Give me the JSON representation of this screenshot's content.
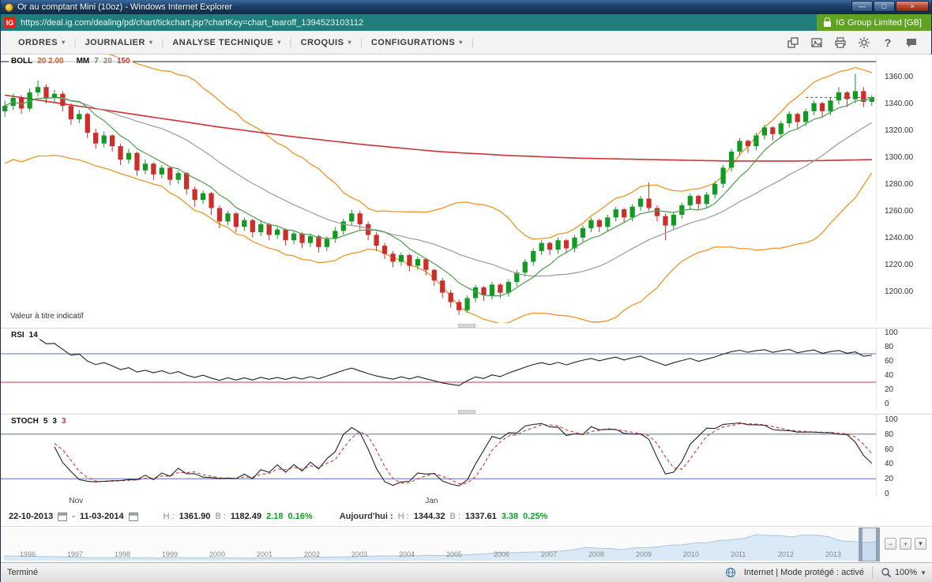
{
  "window": {
    "title": "Or au comptant Mini (10oz) - Windows Internet Explorer"
  },
  "address": {
    "logo": "IG",
    "url": "https://deal.ig.com/dealing/pd/chart/tickchart.jsp?chartKey=chart_tearoff_1394523103112",
    "badge": "IG Group Limited [GB]"
  },
  "menu": {
    "caret": "▾",
    "items": [
      {
        "label": "ORDRES"
      },
      {
        "label": "JOURNALIER"
      },
      {
        "label": "ANALYSE TECHNIQUE"
      },
      {
        "label": "CROQUIS"
      },
      {
        "label": "CONFIGURATIONS"
      }
    ]
  },
  "toolbar_icons": [
    "tearoff-window-icon",
    "snapshot-icon",
    "print-icon",
    "settings-icon",
    "help-icon",
    "feedback-icon"
  ],
  "chart": {
    "note": "Valeur à titre indicatif",
    "indicators": {
      "boll": {
        "name": "BOLL",
        "params": "20 2.00"
      },
      "mm": {
        "name": "MM",
        "p1": "7",
        "p2": "20",
        "p3": "150"
      },
      "rsi": {
        "name": "RSI",
        "params": "14"
      },
      "stoch": {
        "name": "STOCH",
        "p1": "5",
        "p2": "3",
        "p3": "3"
      }
    }
  },
  "info": {
    "from_date": "22-10-2013",
    "dash": "-",
    "to_date": "11-03-2014",
    "h_label": "H :",
    "b_label": "B :",
    "period_high": "1361.90",
    "period_low": "1182.49",
    "change": "2.18",
    "change_pct": "0.16%",
    "today_label": "Aujourd'hui :",
    "today_high": "1344.32",
    "today_low": "1337.61",
    "today_change": "3.38",
    "today_change_pct": "0.25%"
  },
  "status": {
    "ready": "Terminé",
    "zone": "Internet | Mode protégé : activé",
    "zoom": "100%",
    "zoom_caret": "▼"
  },
  "chart_data": [
    {
      "type": "candlestick",
      "instrument": "Or au comptant Mini (10oz)",
      "x_range": [
        "22-10-2013",
        "11-03-2014"
      ],
      "y_domain": [
        1180,
        1368
      ],
      "y_ticks": [
        1360,
        1340,
        1320,
        1300,
        1280,
        1260,
        1240,
        1220,
        1200
      ],
      "x_labels": [
        {
          "label": "Nov",
          "pos": 0.078
        },
        {
          "label": "Jan",
          "pos": 0.485
        }
      ],
      "colors": {
        "up": "#149a24",
        "down": "#cc2e2c",
        "boll": "#ef9426",
        "mm7": "#4d9f4d",
        "mm20": "#9b9b9b",
        "mm150": "#ce3434"
      },
      "overlays": {
        "boll_period": 20,
        "boll_dev": 2.0,
        "ma_periods": [
          7,
          20,
          150
        ],
        "mm150_anchors": [
          1346,
          1338,
          1330,
          1322,
          1315,
          1309,
          1304,
          1301,
          1299,
          1298,
          1297,
          1297,
          1298
        ]
      },
      "candles": [
        [
          1334,
          1342,
          1330,
          1338
        ],
        [
          1338,
          1347,
          1335,
          1344
        ],
        [
          1344,
          1346,
          1332,
          1336
        ],
        [
          1336,
          1351,
          1334,
          1348
        ],
        [
          1348,
          1357,
          1345,
          1352
        ],
        [
          1352,
          1354,
          1340,
          1344
        ],
        [
          1344,
          1350,
          1341,
          1347
        ],
        [
          1347,
          1349,
          1334,
          1338
        ],
        [
          1338,
          1340,
          1324,
          1328
        ],
        [
          1328,
          1335,
          1325,
          1332
        ],
        [
          1332,
          1333,
          1314,
          1318
        ],
        [
          1318,
          1321,
          1306,
          1310
        ],
        [
          1310,
          1319,
          1307,
          1316
        ],
        [
          1316,
          1317,
          1304,
          1308
        ],
        [
          1308,
          1310,
          1294,
          1298
        ],
        [
          1298,
          1306,
          1295,
          1303
        ],
        [
          1303,
          1304,
          1286,
          1290
        ],
        [
          1290,
          1298,
          1287,
          1295
        ],
        [
          1295,
          1296,
          1283,
          1287
        ],
        [
          1287,
          1294,
          1284,
          1292
        ],
        [
          1292,
          1293,
          1279,
          1283
        ],
        [
          1283,
          1290,
          1280,
          1288
        ],
        [
          1288,
          1289,
          1272,
          1276
        ],
        [
          1276,
          1278,
          1263,
          1268
        ],
        [
          1268,
          1275,
          1265,
          1273
        ],
        [
          1273,
          1274,
          1257,
          1262
        ],
        [
          1262,
          1264,
          1247,
          1252
        ],
        [
          1252,
          1260,
          1249,
          1258
        ],
        [
          1258,
          1259,
          1244,
          1248
        ],
        [
          1248,
          1255,
          1245,
          1253
        ],
        [
          1253,
          1254,
          1240,
          1244
        ],
        [
          1244,
          1252,
          1241,
          1250
        ],
        [
          1250,
          1251,
          1238,
          1242
        ],
        [
          1242,
          1248,
          1239,
          1246
        ],
        [
          1246,
          1247,
          1234,
          1238
        ],
        [
          1238,
          1245,
          1235,
          1243
        ],
        [
          1243,
          1244,
          1232,
          1236
        ],
        [
          1236,
          1243,
          1233,
          1241
        ],
        [
          1241,
          1242,
          1229,
          1233
        ],
        [
          1233,
          1241,
          1230,
          1239
        ],
        [
          1239,
          1248,
          1236,
          1245
        ],
        [
          1245,
          1254,
          1242,
          1252
        ],
        [
          1252,
          1261,
          1249,
          1258
        ],
        [
          1258,
          1260,
          1246,
          1250
        ],
        [
          1250,
          1252,
          1238,
          1242
        ],
        [
          1242,
          1244,
          1230,
          1234
        ],
        [
          1234,
          1236,
          1224,
          1228
        ],
        [
          1228,
          1230,
          1218,
          1222
        ],
        [
          1222,
          1229,
          1219,
          1227
        ],
        [
          1227,
          1228,
          1215,
          1219
        ],
        [
          1219,
          1226,
          1216,
          1224
        ],
        [
          1224,
          1225,
          1212,
          1216
        ],
        [
          1216,
          1217,
          1204,
          1208
        ],
        [
          1208,
          1210,
          1195,
          1199
        ],
        [
          1199,
          1201,
          1188,
          1192
        ],
        [
          1192,
          1194,
          1182.5,
          1186
        ],
        [
          1186,
          1197,
          1184,
          1195
        ],
        [
          1195,
          1205,
          1192,
          1203
        ],
        [
          1203,
          1204,
          1193,
          1197
        ],
        [
          1197,
          1207,
          1194,
          1205
        ],
        [
          1205,
          1206,
          1195,
          1199
        ],
        [
          1199,
          1209,
          1196,
          1207
        ],
        [
          1207,
          1216,
          1204,
          1214
        ],
        [
          1214,
          1224,
          1211,
          1222
        ],
        [
          1222,
          1232,
          1219,
          1230
        ],
        [
          1230,
          1238,
          1227,
          1236
        ],
        [
          1236,
          1237,
          1227,
          1231
        ],
        [
          1231,
          1240,
          1228,
          1238
        ],
        [
          1238,
          1239,
          1228,
          1232
        ],
        [
          1232,
          1242,
          1229,
          1240
        ],
        [
          1240,
          1249,
          1237,
          1247
        ],
        [
          1247,
          1255,
          1244,
          1253
        ],
        [
          1253,
          1254,
          1244,
          1248
        ],
        [
          1248,
          1257,
          1245,
          1255
        ],
        [
          1255,
          1263,
          1252,
          1261
        ],
        [
          1261,
          1262,
          1251,
          1255
        ],
        [
          1255,
          1265,
          1252,
          1263
        ],
        [
          1263,
          1271,
          1260,
          1269
        ],
        [
          1269,
          1281,
          1260,
          1262
        ],
        [
          1262,
          1264,
          1252,
          1256
        ],
        [
          1256,
          1258,
          1238,
          1249
        ],
        [
          1249,
          1259,
          1246,
          1257
        ],
        [
          1257,
          1266,
          1254,
          1264
        ],
        [
          1264,
          1273,
          1261,
          1271
        ],
        [
          1271,
          1272,
          1261,
          1265
        ],
        [
          1265,
          1274,
          1262,
          1272
        ],
        [
          1272,
          1282,
          1269,
          1280
        ],
        [
          1280,
          1294,
          1277,
          1292
        ],
        [
          1292,
          1306,
          1289,
          1304
        ],
        [
          1304,
          1314,
          1301,
          1312
        ],
        [
          1312,
          1313,
          1303,
          1308
        ],
        [
          1308,
          1318,
          1305,
          1316
        ],
        [
          1316,
          1324,
          1313,
          1322
        ],
        [
          1322,
          1323,
          1312,
          1317
        ],
        [
          1317,
          1327,
          1314,
          1325
        ],
        [
          1325,
          1334,
          1322,
          1332
        ],
        [
          1332,
          1333,
          1321,
          1326
        ],
        [
          1326,
          1336,
          1323,
          1334
        ],
        [
          1334,
          1342,
          1331,
          1340
        ],
        [
          1340,
          1341,
          1329,
          1334
        ],
        [
          1334,
          1344,
          1331,
          1342
        ],
        [
          1342,
          1352,
          1339,
          1348
        ],
        [
          1348,
          1349,
          1337,
          1343
        ],
        [
          1343,
          1361.9,
          1340,
          1349
        ],
        [
          1349,
          1352,
          1337,
          1341
        ],
        [
          1341,
          1346,
          1338,
          1344.3
        ]
      ]
    },
    {
      "type": "line",
      "name": "RSI",
      "period": 14,
      "y_ticks": [
        100,
        80,
        60,
        40,
        20,
        0
      ],
      "ref_lines": [
        {
          "value": 70,
          "color": "#5b6fc0"
        },
        {
          "value": 30,
          "color": "#c43c3c"
        }
      ],
      "line_color": "#222222"
    },
    {
      "type": "line",
      "name": "STOCH",
      "params": [
        5,
        3,
        3
      ],
      "y_ticks": [
        100,
        80,
        60,
        40,
        20,
        0
      ],
      "ref_lines": [
        {
          "value": 80,
          "color": "#5b6fc0"
        },
        {
          "value": 20,
          "color": "#5b6fc0"
        }
      ],
      "k_color": "#222222",
      "d_color": "#d03a3a"
    },
    {
      "type": "area",
      "name": "range-navigator",
      "y_range": [
        200,
        2000
      ],
      "years": [
        "1996",
        "1997",
        "1998",
        "1999",
        "2000",
        "2001",
        "2002",
        "2003",
        "2004",
        "2005",
        "2006",
        "2007",
        "2008",
        "2009",
        "2010",
        "2011",
        "2012",
        "2013"
      ],
      "values": [
        400,
        395,
        388,
        370,
        355,
        345,
        330,
        295,
        295,
        295,
        290,
        292,
        286,
        262,
        300,
        290,
        288,
        285,
        274,
        270,
        262,
        270,
        272,
        276,
        295,
        315,
        315,
        330,
        340,
        350,
        380,
        400,
        405,
        395,
        405,
        435,
        430,
        435,
        460,
        510,
        555,
        615,
        600,
        630,
        655,
        665,
        715,
        800,
        935,
        890,
        870,
        800,
        920,
        930,
        990,
        1090,
        1110,
        1230,
        1240,
        1380,
        1430,
        1510,
        1750,
        1700,
        1690,
        1600,
        1740,
        1710,
        1610,
        1350,
        1320,
        1250,
        1300
      ],
      "selection": {
        "start_fraction": 0.92,
        "end_fraction": 0.945
      }
    }
  ]
}
